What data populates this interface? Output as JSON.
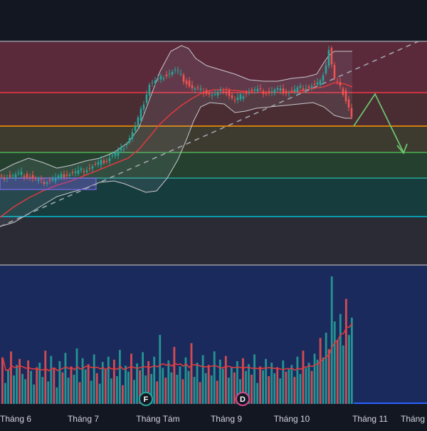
{
  "chart_data": {
    "type": "candlestick",
    "x_axis": {
      "tick_labels": [
        "Tháng 6",
        "Tháng 7",
        "Tháng Tám",
        "Tháng 9",
        "Tháng 10",
        "Tháng 11",
        "Tháng"
      ]
    },
    "price_zones": [
      {
        "color": "#5b2a3a"
      },
      {
        "color": "#4a2c33"
      },
      {
        "color": "#3d3b2f"
      },
      {
        "color": "#25402f"
      },
      {
        "color": "#173c3d"
      },
      {
        "color": "#1d3844"
      },
      {
        "color": "#2a2b34"
      }
    ],
    "horizontal_levels": [
      {
        "name": "top",
        "color": "#9a9aa2"
      },
      {
        "name": "red",
        "color": "#f23645"
      },
      {
        "name": "orange",
        "color": "#ff9800"
      },
      {
        "name": "green",
        "color": "#4caf50"
      },
      {
        "name": "teal",
        "color": "#26a69a"
      },
      {
        "name": "cyan",
        "color": "#00bcd4"
      },
      {
        "name": "bottom",
        "color": "#9a9aa2"
      }
    ],
    "projection": {
      "color": "#6ac46c"
    },
    "trendline": {
      "color": "#a0a4ad",
      "style": "dashed"
    },
    "bollinger": {
      "band_color": "#c8c8cc",
      "basis_color": "#e03a3e"
    },
    "volume": {
      "panel_color": "#1b2a5c",
      "ma_color": "#e03a3e",
      "up_color": "#26a69a",
      "down_color": "#ef5350",
      "values": [
        62,
        28,
        45,
        70,
        38,
        52,
        60,
        40,
        33,
        58,
        44,
        26,
        49,
        55,
        36,
        71,
        30,
        64,
        48,
        22,
        57,
        42,
        68,
        35,
        50,
        39,
        74,
        29,
        61,
        46,
        53,
        31,
        66,
        41,
        27,
        56,
        47,
        63,
        34,
        59,
        37,
        72,
        25,
        51,
        43,
        67,
        32,
        54,
        45,
        69,
        38,
        57,
        40,
        63,
        30,
        92,
        48,
        35,
        58,
        42,
        76,
        39,
        50,
        33,
        62,
        44,
        81,
        36,
        55,
        29,
        65,
        41,
        52,
        38,
        70,
        31,
        59,
        47,
        64,
        35,
        48,
        42,
        57,
        33,
        61,
        44,
        53,
        39,
        66,
        28,
        50,
        45,
        60,
        37,
        55,
        41,
        49,
        34,
        58,
        43,
        46,
        52,
        36,
        63,
        40,
        71,
        48,
        55,
        44,
        67,
        59,
        88,
        62,
        95,
        73,
        170,
        110,
        85,
        120,
        78,
        140,
        92,
        115
      ]
    },
    "event_markers": [
      {
        "label": "F",
        "color": "#26a69a"
      },
      {
        "label": "D",
        "color": "#d5498d"
      }
    ]
  }
}
